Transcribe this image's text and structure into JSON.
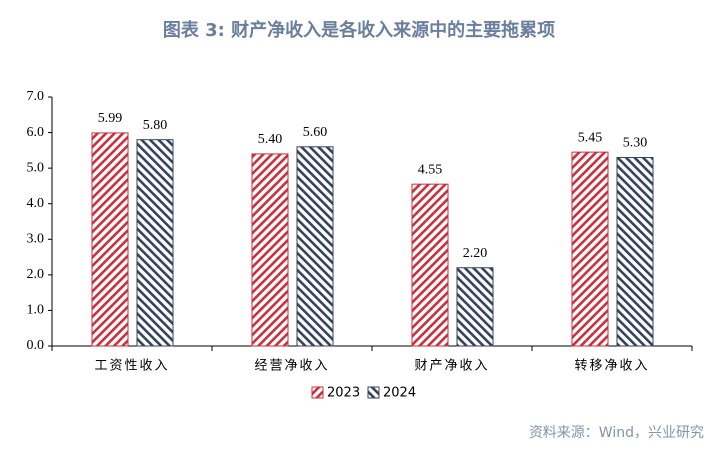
{
  "chart_data": {
    "type": "bar",
    "title": "图表 3:   财产净收入是各收入来源中的主要拖累项",
    "source": "资料来源：Wind，兴业研究",
    "categories": [
      "工资性收入",
      "经营净收入",
      "财产净收入",
      "转移净收入"
    ],
    "series": [
      {
        "name": "2023",
        "color": "#c8303c",
        "values": [
          5.99,
          5.4,
          4.55,
          5.45
        ],
        "value_labels": [
          "5.99",
          "5.40",
          "4.55",
          "5.45"
        ]
      },
      {
        "name": "2024",
        "color": "#35425e",
        "values": [
          5.8,
          5.6,
          2.2,
          5.3
        ],
        "value_labels": [
          "5.80",
          "5.60",
          "2.20",
          "5.30"
        ]
      }
    ],
    "ylim": [
      0,
      7
    ],
    "yticks": [
      {
        "value": 0,
        "label": "0.0"
      },
      {
        "value": 1,
        "label": "1.0"
      },
      {
        "value": 2,
        "label": "2.0"
      },
      {
        "value": 3,
        "label": "3.0"
      },
      {
        "value": 4,
        "label": "4.0"
      },
      {
        "value": 5,
        "label": "5.0"
      },
      {
        "value": 6,
        "label": "6.0"
      },
      {
        "value": 7,
        "label": "7.0"
      }
    ],
    "legend": "bottom"
  }
}
